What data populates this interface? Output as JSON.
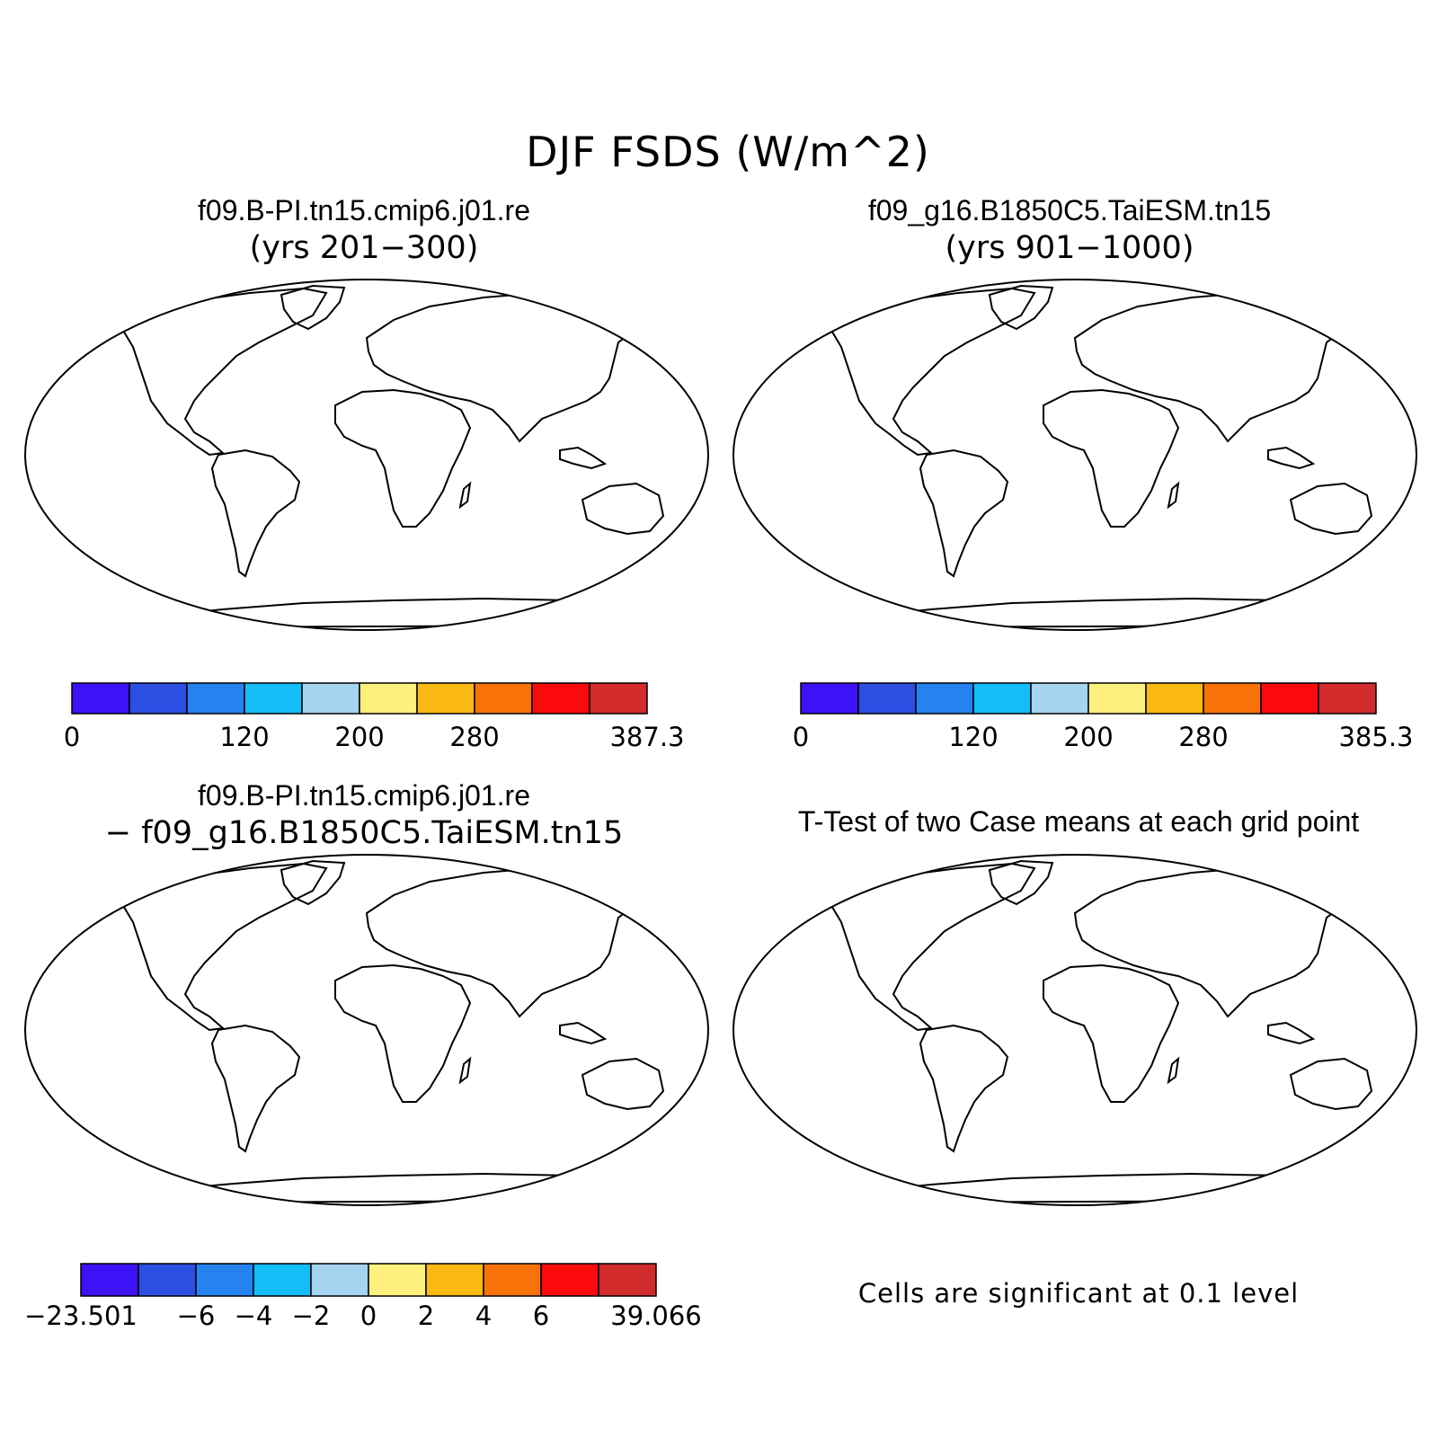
{
  "title": "DJF FSDS (W/m^2)",
  "panels": [
    {
      "id": "case1",
      "title": "f09.B-PI.tn15.cmip6.j01.re",
      "subtitle": "(yrs 201−300)",
      "colorbar": {
        "colors": [
          "#3d12f7",
          "#2d4ee3",
          "#2583f0",
          "#13bdf6",
          "#a4d4ef",
          "#fdf07d",
          "#fbb914",
          "#f87307",
          "#fa0a0a",
          "#d12b2b"
        ],
        "labels": [
          "0",
          "120",
          "200",
          "280",
          "387.3"
        ],
        "label_slots": [
          0,
          3,
          5,
          7,
          10
        ]
      }
    },
    {
      "id": "case2",
      "title": "f09_g16.B1850C5.TaiESM.tn15",
      "subtitle": "(yrs 901−1000)",
      "colorbar": {
        "colors": [
          "#3d12f7",
          "#2d4ee3",
          "#2583f0",
          "#13bdf6",
          "#a4d4ef",
          "#fdf07d",
          "#fbb914",
          "#f87307",
          "#fa0a0a",
          "#d12b2b"
        ],
        "labels": [
          "0",
          "120",
          "200",
          "280",
          "385.3"
        ],
        "label_slots": [
          0,
          3,
          5,
          7,
          10
        ]
      }
    },
    {
      "id": "diff",
      "title": "f09.B-PI.tn15.cmip6.j01.re",
      "subtitle": "− f09_g16.B1850C5.TaiESM.tn15",
      "colorbar": {
        "colors": [
          "#3d12f7",
          "#2d4ee3",
          "#2583f0",
          "#13bdf6",
          "#a4d4ef",
          "#fdf07d",
          "#fbb914",
          "#f87307",
          "#fa0a0a",
          "#d12b2b"
        ],
        "labels": [
          "−23.501",
          "−6",
          "−4",
          "−2",
          "0",
          "2",
          "4",
          "6",
          "39.066"
        ],
        "label_slots": [
          0,
          2,
          3,
          4,
          5,
          6,
          7,
          8,
          10
        ]
      }
    },
    {
      "id": "ttest",
      "title": "T-Test of two Case means at each grid point",
      "note": "Cells are significant at 0.1 level",
      "significant_color": "#ff0000"
    }
  ]
}
